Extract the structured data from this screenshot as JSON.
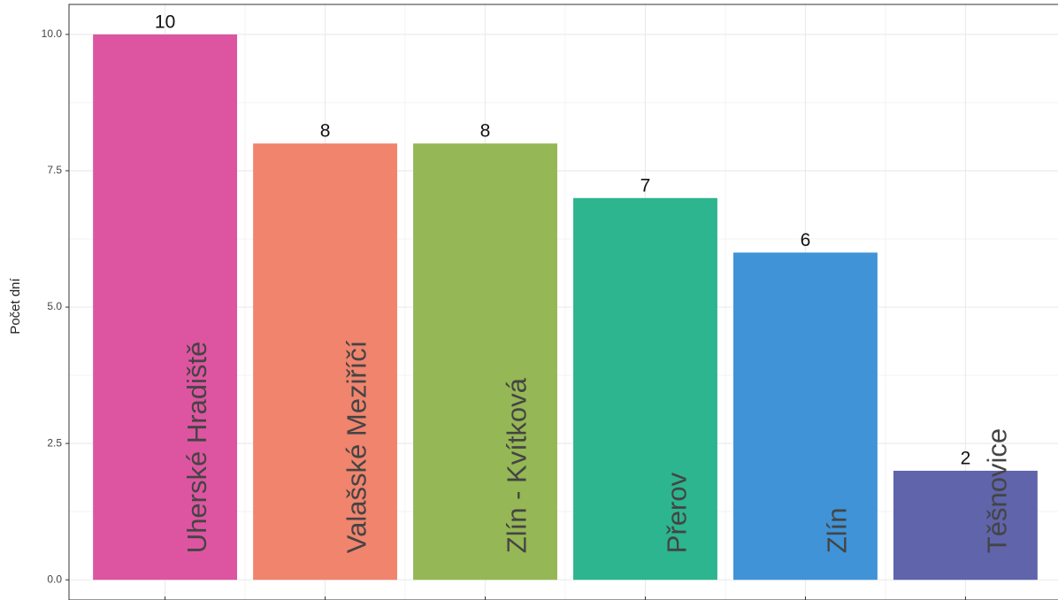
{
  "chart_data": {
    "type": "bar",
    "ylabel": "Počet dní",
    "categories": [
      "Uherské Hradiště",
      "Valašské Meziříčí",
      "Zlín - Kvítková",
      "Přerov",
      "Zlín",
      "Těšnovice"
    ],
    "values": [
      10,
      8,
      8,
      7,
      6,
      2
    ],
    "colors": [
      "#dc509d",
      "#f08068",
      "#92b550",
      "#25b38a",
      "#3a8fd6",
      "#5a5fa8"
    ],
    "ylim": [
      -0.37,
      10.55
    ],
    "yticks": [
      {
        "value": 0,
        "label": "0.0"
      },
      2.5,
      {
        "value": 5,
        "label": "5.0"
      },
      7.5,
      {
        "value": 10,
        "label": "10.0"
      }
    ],
    "grid": true
  }
}
